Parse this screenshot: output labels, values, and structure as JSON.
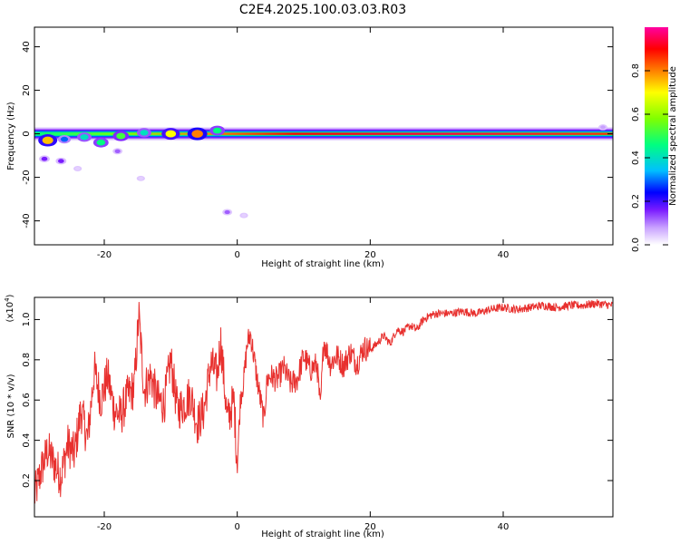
{
  "title": "C2E4.2025.100.03.03.R03",
  "colors": {
    "snr_line": "#e8302e",
    "axis": "#000000",
    "background": "#ffffff"
  },
  "chart_data": [
    {
      "type": "heatmap",
      "xlabel": "Height of straight line (km)",
      "ylabel": "Frequency (Hz)",
      "xlim": [
        -30.5,
        56.5
      ],
      "ylim": [
        -51,
        49
      ],
      "xticks": [
        -20,
        0,
        20,
        40
      ],
      "yticks": [
        -40,
        -20,
        0,
        20,
        40
      ],
      "colorbar": {
        "label": "Normalized spectral amplitude",
        "range": [
          0.0,
          1.0
        ],
        "ticks": [
          "0.0",
          "0.2",
          "0.4",
          "0.6",
          "0.8"
        ],
        "tick_values": [
          0.0,
          0.2,
          0.4,
          0.6,
          0.8
        ],
        "colors": [
          "#ffffff",
          "#c8a0ff",
          "#7a1cff",
          "#0000ff",
          "#00bfff",
          "#00ff80",
          "#80ff00",
          "#ffff00",
          "#ff8000",
          "#ff0000",
          "#ff00a0"
        ]
      },
      "ridge": {
        "frequency_hz": 0,
        "x_start": -30.5,
        "x_end": 56.5
      },
      "blobs": [
        {
          "x": -28.5,
          "y": -3.0,
          "v": 0.75
        },
        {
          "x": -26.0,
          "y": -2.5,
          "v": 0.35
        },
        {
          "x": -23.0,
          "y": -1.5,
          "v": 0.45
        },
        {
          "x": -20.5,
          "y": -4.0,
          "v": 0.5
        },
        {
          "x": -17.5,
          "y": -1.0,
          "v": 0.55
        },
        {
          "x": -14.0,
          "y": 0.5,
          "v": 0.45
        },
        {
          "x": -10.0,
          "y": 0.0,
          "v": 0.7
        },
        {
          "x": -6.0,
          "y": 0.0,
          "v": 0.8
        },
        {
          "x": -3.0,
          "y": 1.5,
          "v": 0.5
        },
        {
          "x": -29.0,
          "y": -11.5,
          "v": 0.2
        },
        {
          "x": -26.5,
          "y": -12.5,
          "v": 0.2
        },
        {
          "x": -18.0,
          "y": -8.0,
          "v": 0.15
        },
        {
          "x": -24.0,
          "y": -16.0,
          "v": 0.05
        },
        {
          "x": -14.5,
          "y": -20.5,
          "v": 0.05
        },
        {
          "x": -1.5,
          "y": -36.0,
          "v": 0.15
        },
        {
          "x": 1.0,
          "y": -37.5,
          "v": 0.05
        },
        {
          "x": 55.0,
          "y": 3.0,
          "v": 0.1
        }
      ]
    },
    {
      "type": "line",
      "xlabel": "Height of straight line (km)",
      "ylabel": "SNR (10 * v/v)",
      "scale_label": "(x10",
      "scale_exponent": "4",
      "scale_suffix": ")",
      "xlim": [
        -30.5,
        56.5
      ],
      "ylim": [
        0.02,
        1.11
      ],
      "xticks": [
        -20,
        0,
        20,
        40
      ],
      "yticks": [
        0.2,
        0.4,
        0.6,
        0.8,
        1.0
      ],
      "series": [
        {
          "x": [
            -30.5,
            -29.5,
            -28.5,
            -27.5,
            -26.5,
            -25.5,
            -24.5,
            -23.5,
            -22.5,
            -21.5,
            -20.5,
            -19.5,
            -18.5,
            -17.5,
            -16.5,
            -15.5,
            -14.8,
            -14.0,
            -13.0,
            -12.0,
            -11.0,
            -10.0,
            -9.0,
            -8.0,
            -7.0,
            -6.0,
            -5.0,
            -4.0,
            -3.0,
            -2.5,
            -1.5,
            -0.5,
            0.0,
            0.5,
            1.0,
            1.5,
            2.0,
            3.0,
            4.0,
            4.5,
            5.0,
            6.0,
            7.0,
            8.0,
            9.0,
            10.0,
            11.0,
            12.0,
            12.5,
            13.0,
            14.0,
            15.0,
            16.0,
            17.0,
            18.0,
            19.0,
            20.0,
            21.0,
            22.0,
            23.0,
            24.0,
            25.0,
            26.0,
            27.0,
            28.0,
            29.0,
            30.0,
            32.0,
            34.0,
            36.0,
            38.0,
            40.0,
            42.0,
            44.0,
            46.0,
            48.0,
            50.0,
            52.0,
            54.0,
            56.5
          ],
          "y": [
            0.12,
            0.25,
            0.35,
            0.28,
            0.22,
            0.38,
            0.33,
            0.55,
            0.4,
            0.75,
            0.6,
            0.72,
            0.55,
            0.52,
            0.62,
            0.66,
            1.02,
            0.65,
            0.72,
            0.6,
            0.58,
            0.8,
            0.55,
            0.58,
            0.63,
            0.48,
            0.55,
            0.78,
            0.72,
            0.9,
            0.5,
            0.6,
            0.28,
            0.62,
            0.7,
            0.88,
            0.93,
            0.7,
            0.5,
            0.7,
            0.72,
            0.7,
            0.76,
            0.68,
            0.7,
            0.82,
            0.75,
            0.78,
            0.55,
            0.9,
            0.78,
            0.82,
            0.77,
            0.84,
            0.78,
            0.86,
            0.85,
            0.88,
            0.92,
            0.88,
            0.95,
            0.94,
            0.97,
            0.95,
            1.0,
            1.02,
            1.03,
            1.03,
            1.04,
            1.03,
            1.05,
            1.06,
            1.05,
            1.06,
            1.07,
            1.06,
            1.07,
            1.07,
            1.08,
            1.07
          ],
          "noise": 0.06
        }
      ]
    }
  ]
}
